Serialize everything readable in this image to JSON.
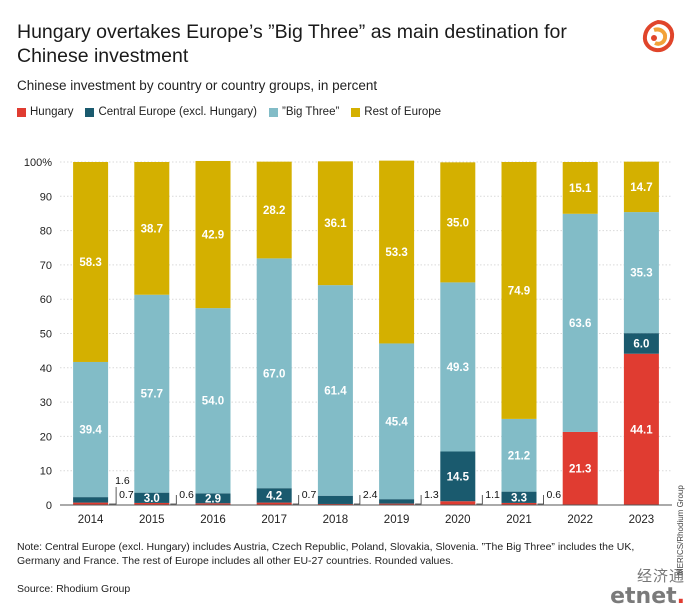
{
  "title": "Hungary overtakes Europe’s ”Big Three” as main destination for Chinese investment",
  "subtitle": "Chinese investment by country or country groups, in percent",
  "legend": [
    {
      "label": "Hungary",
      "color": "#e03c31"
    },
    {
      "label": "Central Europe (excl. Hungary)",
      "color": "#1a5a6e"
    },
    {
      "label": "”Big Three”",
      "color": "#82bcc7"
    },
    {
      "label": "Rest of Europe",
      "color": "#d4b000"
    }
  ],
  "note": "Note: Central Europe (excl. Hungary) includes Austria, Czech Republic, Poland, Slovakia, Slovenia. ”The Big Three” includes the UK, Germany and France. The rest of Europe includes all other EU-27 countries. Rounded values.",
  "source": "Source: Rhodium Group",
  "credit": "MERICS/Rhodium Group",
  "watermark": {
    "cn": "经济通",
    "en_main": "etnet",
    "en_accent": "."
  },
  "chart_data": {
    "type": "bar",
    "stacked": true,
    "categories": [
      "2014",
      "2015",
      "2016",
      "2017",
      "2018",
      "2019",
      "2020",
      "2021",
      "2022",
      "2023"
    ],
    "ylim": [
      0,
      100
    ],
    "yticks": [
      "0",
      "10",
      "20",
      "30",
      "40",
      "50",
      "60",
      "70",
      "80",
      "90",
      "100%"
    ],
    "series": [
      {
        "name": "Hungary",
        "color": "#e03c31",
        "values": [
          0.7,
          0.6,
          0.5,
          0.7,
          0.3,
          0.4,
          1.1,
          0.6,
          21.3,
          44.1
        ],
        "labels": [
          "",
          "",
          "",
          "",
          "",
          "",
          "",
          "",
          "21.3",
          "44.1"
        ]
      },
      {
        "name": "Central Europe (excl. Hungary)",
        "color": "#1a5a6e",
        "values": [
          1.6,
          3.0,
          2.9,
          4.2,
          2.4,
          1.3,
          14.5,
          3.3,
          0.0,
          6.0
        ],
        "labels": [
          "",
          "3.0",
          "2.9",
          "4.2",
          "",
          "",
          "14.5",
          "3.3",
          "",
          "6.0"
        ]
      },
      {
        "name": "”Big Three”",
        "color": "#82bcc7",
        "values": [
          39.4,
          57.7,
          54.0,
          67.0,
          61.4,
          45.4,
          49.3,
          21.2,
          63.6,
          35.3
        ],
        "labels": [
          "39.4",
          "57.7",
          "54.0",
          "67.0",
          "61.4",
          "45.4",
          "49.3",
          "21.2",
          "63.6",
          "35.3"
        ]
      },
      {
        "name": "Rest of Europe",
        "color": "#d4b000",
        "values": [
          58.3,
          38.7,
          42.9,
          28.2,
          36.1,
          53.3,
          35.0,
          74.9,
          15.1,
          14.7
        ],
        "labels": [
          "58.3",
          "38.7",
          "42.9",
          "28.2",
          "36.1",
          "53.3",
          "35.0",
          "74.9",
          "15.1",
          "14.7"
        ]
      }
    ],
    "callouts": [
      {
        "category": "2014",
        "texts": [
          "1.6",
          "0.7"
        ]
      },
      {
        "category": "2015",
        "texts": [
          "0.6"
        ]
      },
      {
        "category": "2017",
        "texts": [
          "0.7"
        ]
      },
      {
        "category": "2018",
        "texts": [
          "2.4"
        ]
      },
      {
        "category": "2019",
        "texts": [
          "1.3"
        ]
      },
      {
        "category": "2020",
        "texts": [
          "1.1"
        ]
      },
      {
        "category": "2021",
        "texts": [
          "0.6"
        ]
      }
    ],
    "grid": true,
    "legend_position": "top-left"
  }
}
